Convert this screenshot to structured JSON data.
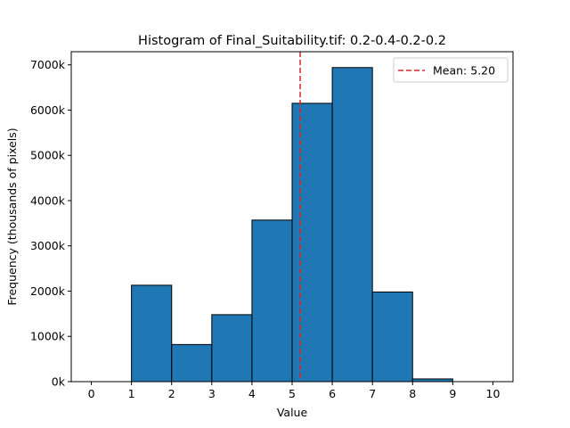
{
  "chart_data": {
    "type": "bar",
    "title": "Histogram of Final_Suitability.tif: 0.2-0.4-0.2-0.2",
    "xlabel": "Value",
    "ylabel": "Frequency (thousands of pixels)",
    "bins": [
      {
        "start": 0,
        "end": 1,
        "value": 0
      },
      {
        "start": 1,
        "end": 2,
        "value": 2130
      },
      {
        "start": 2,
        "end": 3,
        "value": 820
      },
      {
        "start": 3,
        "end": 4,
        "value": 1480
      },
      {
        "start": 4,
        "end": 5,
        "value": 3570
      },
      {
        "start": 5,
        "end": 6,
        "value": 6150
      },
      {
        "start": 6,
        "end": 7,
        "value": 6940
      },
      {
        "start": 7,
        "end": 8,
        "value": 1980
      },
      {
        "start": 8,
        "end": 9,
        "value": 60
      },
      {
        "start": 9,
        "end": 10,
        "value": 0
      }
    ],
    "xlim": [
      -0.5,
      10.5
    ],
    "ylim": [
      0,
      7290
    ],
    "xticks": [
      0,
      1,
      2,
      3,
      4,
      5,
      6,
      7,
      8,
      9,
      10
    ],
    "xtick_labels": [
      "0",
      "1",
      "2",
      "3",
      "4",
      "5",
      "6",
      "7",
      "8",
      "9",
      "10"
    ],
    "yticks": [
      0,
      1000,
      2000,
      3000,
      4000,
      5000,
      6000,
      7000
    ],
    "ytick_labels": [
      "0k",
      "1000k",
      "2000k",
      "3000k",
      "4000k",
      "5000k",
      "6000k",
      "7000k"
    ],
    "mean": 5.2,
    "mean_label": "Mean: 5.20",
    "grid": false,
    "legend_position": "top-right",
    "bar_color": "#1f77b4",
    "edge_color": "#000000",
    "mean_line_color": "#d62728"
  }
}
